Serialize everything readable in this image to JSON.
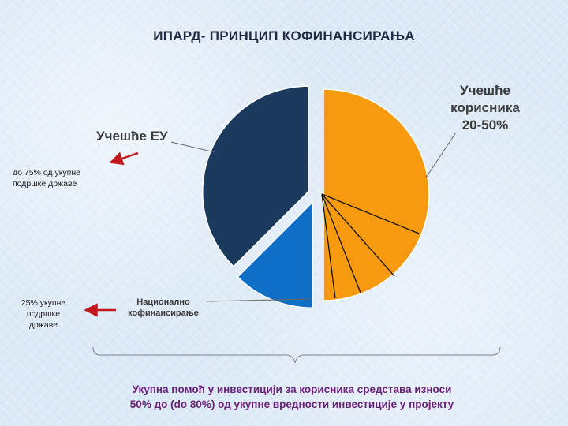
{
  "title": "ИПАРД- ПРИНЦИП КОФИНАНСИРАЊА",
  "chart_data": {
    "type": "pie",
    "slices": [
      {
        "label": "Учешће корисника 20-50%",
        "value": 50,
        "color": "#f79a0e"
      },
      {
        "label": "Национално кофинансирање",
        "value": 12.5,
        "color": "#0f6fc6"
      },
      {
        "label": "Учешће ЕУ",
        "value": 37.5,
        "color": "#1c3a5e"
      }
    ],
    "user_label_lines": [
      "Учешће",
      "корисника",
      "20-50%"
    ],
    "eu_label": "Учешће ЕУ",
    "national_label_lines": [
      "Национално",
      "кофинансирање"
    ]
  },
  "notes": {
    "eu_lines": [
      "до 75% од укупне",
      "подршке државе"
    ],
    "national_lines": [
      "25% укупне",
      "подршке",
      "државе"
    ]
  },
  "summary_lines": [
    "Укупна помоћ у инвестицији за корисника средстава износи",
    "50% до (do 80%) од укупне вредности инвестиције у пројекту"
  ]
}
